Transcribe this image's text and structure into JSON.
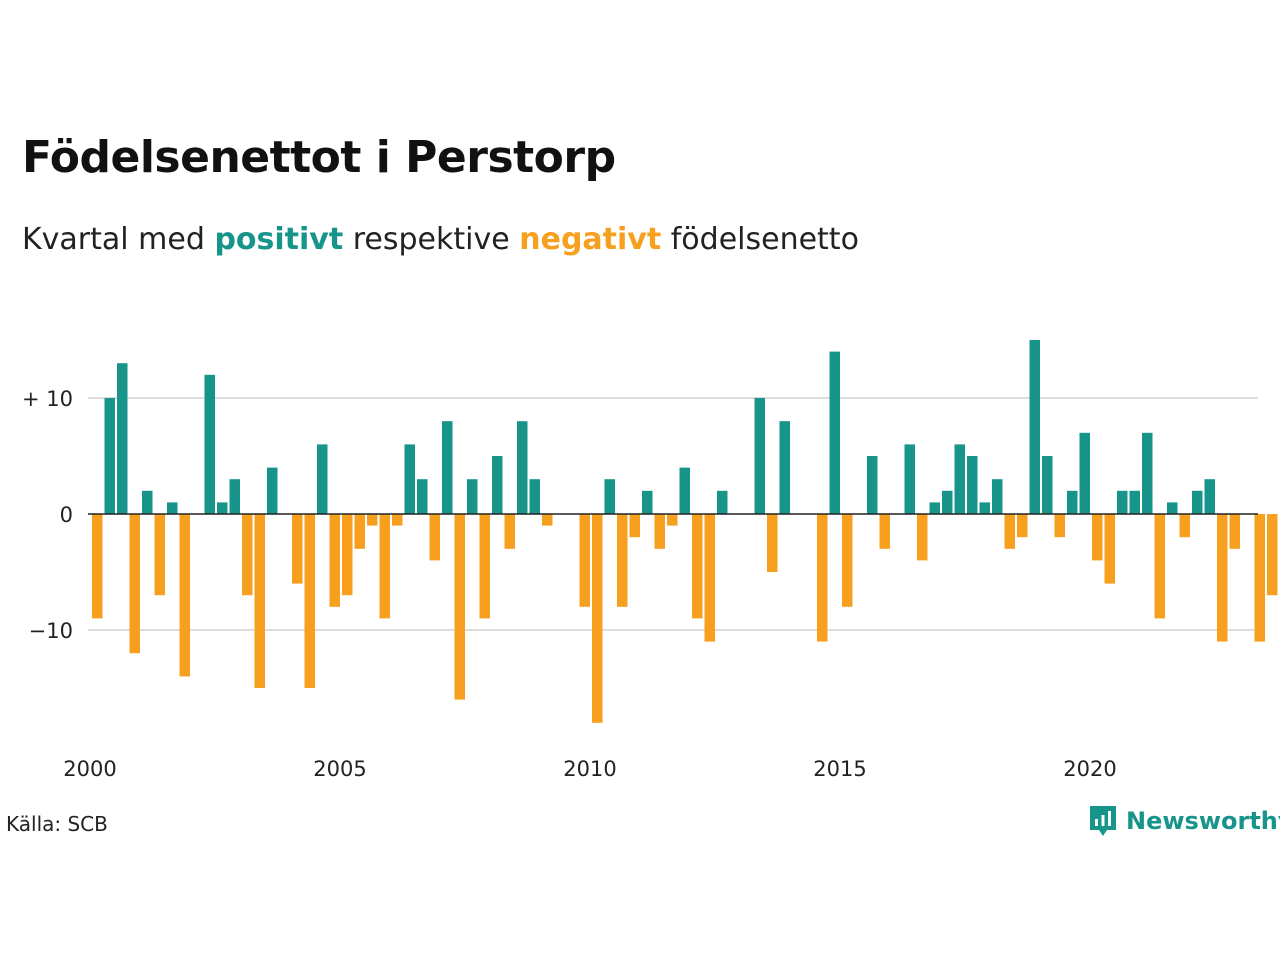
{
  "title": "Födelsenettot i Perstorp",
  "subtitle": {
    "prefix": "Kvartal med",
    "positive": "positivt",
    "middle": "respektive",
    "negative": "negativt",
    "suffix": "födelsenetto"
  },
  "source": "Källa: SCB",
  "brand": {
    "name": "Newsworthy",
    "icon": "newsworthy-logo-icon"
  },
  "colors": {
    "positive": "#17958a",
    "negative": "#f7a01f",
    "grid": "#dddddd",
    "zero": "#222222"
  },
  "chart_data": {
    "type": "bar",
    "x_start": "2000-Q1",
    "x_tick_labels": [
      "2000",
      "2005",
      "2010",
      "2015",
      "2020"
    ],
    "y_tick_labels": [
      "+ 10",
      "0",
      "−10"
    ],
    "ylim": [
      -19,
      16
    ],
    "grid": true,
    "values": [
      -9,
      10,
      13,
      -12,
      2,
      -7,
      1,
      -14,
      0,
      12,
      1,
      3,
      -7,
      -15,
      4,
      0,
      -6,
      -15,
      6,
      -8,
      -7,
      -3,
      -1,
      -9,
      -1,
      6,
      3,
      -4,
      8,
      -16,
      3,
      -9,
      5,
      -3,
      8,
      3,
      -1,
      0,
      0,
      -8,
      -18,
      3,
      -8,
      -2,
      2,
      -3,
      -1,
      4,
      -9,
      -11,
      2,
      0,
      0,
      10,
      -5,
      8,
      0,
      0,
      -11,
      14,
      -8,
      0,
      5,
      -3,
      0,
      6,
      -4,
      1,
      2,
      6,
      5,
      1,
      3,
      -3,
      -2,
      15,
      5,
      -2,
      2,
      7,
      -4,
      -6,
      2,
      2,
      7,
      -9,
      1,
      -2,
      2,
      3,
      -11,
      -3,
      0,
      -11,
      -7
    ]
  }
}
